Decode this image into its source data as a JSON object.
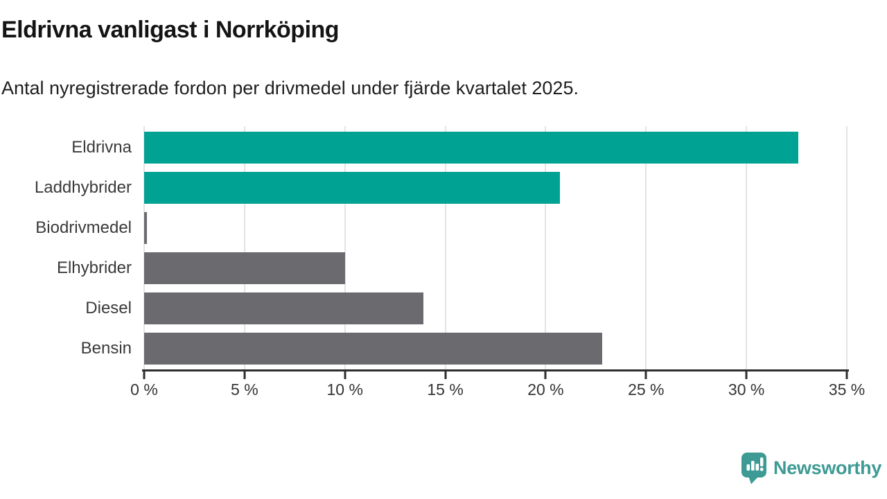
{
  "chart_data": {
    "type": "bar",
    "orientation": "horizontal",
    "title": "Eldrivna vanligast i Norrköping",
    "subtitle": "Antal nyregistrerade fordon per drivmedel under fjärde kvartalet 2025.",
    "categories": [
      "Eldrivna",
      "Laddhybrider",
      "Biodrivmedel",
      "Elhybrider",
      "Diesel",
      "Bensin"
    ],
    "values": [
      32.6,
      20.7,
      0.15,
      10.0,
      13.9,
      22.8
    ],
    "unit": "%",
    "bar_colors": [
      "#00a294",
      "#00a294",
      "#6a6a6f",
      "#6a6a6f",
      "#6a6a6f",
      "#6a6a6f"
    ],
    "xlim": [
      0,
      35
    ],
    "xticks": [
      0,
      5,
      10,
      15,
      20,
      25,
      30,
      35
    ],
    "xtick_labels": [
      "0 %",
      "5 %",
      "10 %",
      "15 %",
      "20 %",
      "25 %",
      "30 %",
      "35 %"
    ],
    "grid": "vertical-gridlines-on",
    "legend": "none"
  },
  "branding": {
    "name": "Newsworthy",
    "icon": "newsworthy-speech-bubble-bar-chart-icon",
    "color": "#3d9a94"
  },
  "colors": {
    "accent_teal": "#00a294",
    "neutral_gray": "#6a6a6f",
    "axis": "#2e2e2e",
    "gridline": "#e4e4e4",
    "text_dark": "#141414",
    "label_gray": "#3a3a3a"
  }
}
